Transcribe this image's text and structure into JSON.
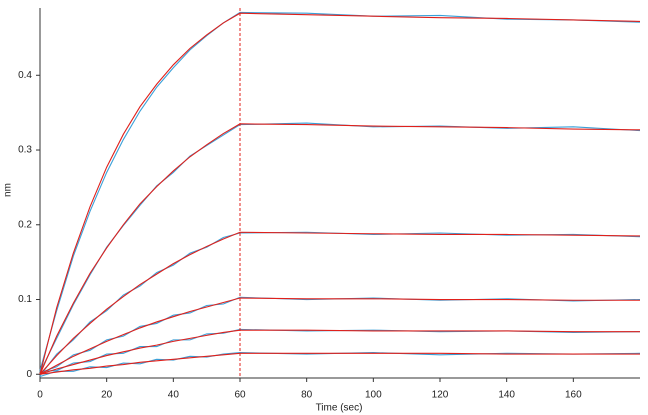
{
  "chart_data": {
    "type": "line",
    "xlabel": "Time (sec)",
    "ylabel": "nm",
    "x": [
      0,
      5,
      10,
      15,
      20,
      25,
      30,
      35,
      40,
      45,
      50,
      55,
      60,
      80,
      100,
      120,
      140,
      160,
      180
    ],
    "xlim": [
      0,
      180
    ],
    "xticks": [
      0,
      20,
      40,
      60,
      80,
      100,
      120,
      140,
      160
    ],
    "ylim": [
      -0.005,
      0.49
    ],
    "yticks": [
      0,
      0.1,
      0.2,
      0.3,
      0.4
    ],
    "vline": {
      "x": 60,
      "color": "#e0201b"
    },
    "series": [
      {
        "color": "#3aa0d8",
        "values": [
          0.005,
          0.085,
          0.158,
          0.218,
          0.27,
          0.314,
          0.352,
          0.384,
          0.41,
          0.434,
          0.453,
          0.47,
          0.484,
          0.483,
          0.479,
          0.48,
          0.475,
          0.474,
          0.471
        ]
      },
      {
        "color": "#3aa0d8",
        "values": [
          0.003,
          0.048,
          0.093,
          0.133,
          0.17,
          0.199,
          0.226,
          0.252,
          0.27,
          0.292,
          0.306,
          0.32,
          0.334,
          0.336,
          0.331,
          0.332,
          0.329,
          0.331,
          0.326
        ]
      },
      {
        "color": "#3aa0d8",
        "values": [
          -0.002,
          0.027,
          0.046,
          0.07,
          0.085,
          0.106,
          0.118,
          0.136,
          0.146,
          0.162,
          0.17,
          0.183,
          0.189,
          0.19,
          0.187,
          0.189,
          0.186,
          0.187,
          0.184
        ]
      },
      {
        "color": "#3aa0d8",
        "values": [
          0.002,
          0.01,
          0.026,
          0.032,
          0.046,
          0.051,
          0.064,
          0.068,
          0.079,
          0.082,
          0.092,
          0.094,
          0.103,
          0.1,
          0.102,
          0.099,
          0.101,
          0.098,
          0.1
        ]
      },
      {
        "color": "#3aa0d8",
        "values": [
          0.004,
          0.005,
          0.015,
          0.017,
          0.027,
          0.028,
          0.037,
          0.037,
          0.046,
          0.046,
          0.054,
          0.055,
          0.06,
          0.058,
          0.059,
          0.057,
          0.058,
          0.056,
          0.057
        ]
      },
      {
        "color": "#3aa0d8",
        "values": [
          -0.003,
          0.004,
          0.004,
          0.01,
          0.009,
          0.015,
          0.014,
          0.02,
          0.019,
          0.024,
          0.023,
          0.027,
          0.029,
          0.027,
          0.029,
          0.026,
          0.028,
          0.027,
          0.028
        ]
      },
      {
        "color": "#e0201b",
        "values": [
          0,
          0.089,
          0.162,
          0.224,
          0.277,
          0.321,
          0.358,
          0.388,
          0.414,
          0.436,
          0.454,
          0.47,
          0.483,
          0.481,
          0.479,
          0.477,
          0.476,
          0.474,
          0.472
        ]
      },
      {
        "color": "#e0201b",
        "values": [
          0,
          0.051,
          0.095,
          0.135,
          0.169,
          0.2,
          0.228,
          0.251,
          0.272,
          0.291,
          0.307,
          0.322,
          0.335,
          0.334,
          0.332,
          0.331,
          0.33,
          0.328,
          0.327
        ]
      },
      {
        "color": "#e0201b",
        "values": [
          0,
          0.025,
          0.048,
          0.068,
          0.087,
          0.104,
          0.12,
          0.134,
          0.148,
          0.16,
          0.171,
          0.181,
          0.19,
          0.189,
          0.188,
          0.187,
          0.187,
          0.186,
          0.185
        ]
      },
      {
        "color": "#e0201b",
        "values": [
          0,
          0.012,
          0.024,
          0.034,
          0.044,
          0.053,
          0.062,
          0.07,
          0.077,
          0.084,
          0.09,
          0.096,
          0.102,
          0.101,
          0.101,
          0.1,
          0.1,
          0.099,
          0.099
        ]
      },
      {
        "color": "#e0201b",
        "values": [
          0,
          0.007,
          0.013,
          0.019,
          0.025,
          0.03,
          0.035,
          0.039,
          0.044,
          0.048,
          0.052,
          0.056,
          0.059,
          0.059,
          0.058,
          0.058,
          0.058,
          0.057,
          0.057
        ]
      },
      {
        "color": "#e0201b",
        "values": [
          0,
          0.003,
          0.006,
          0.008,
          0.011,
          0.013,
          0.016,
          0.018,
          0.02,
          0.022,
          0.024,
          0.026,
          0.028,
          0.028,
          0.028,
          0.028,
          0.027,
          0.027,
          0.027
        ]
      }
    ]
  }
}
